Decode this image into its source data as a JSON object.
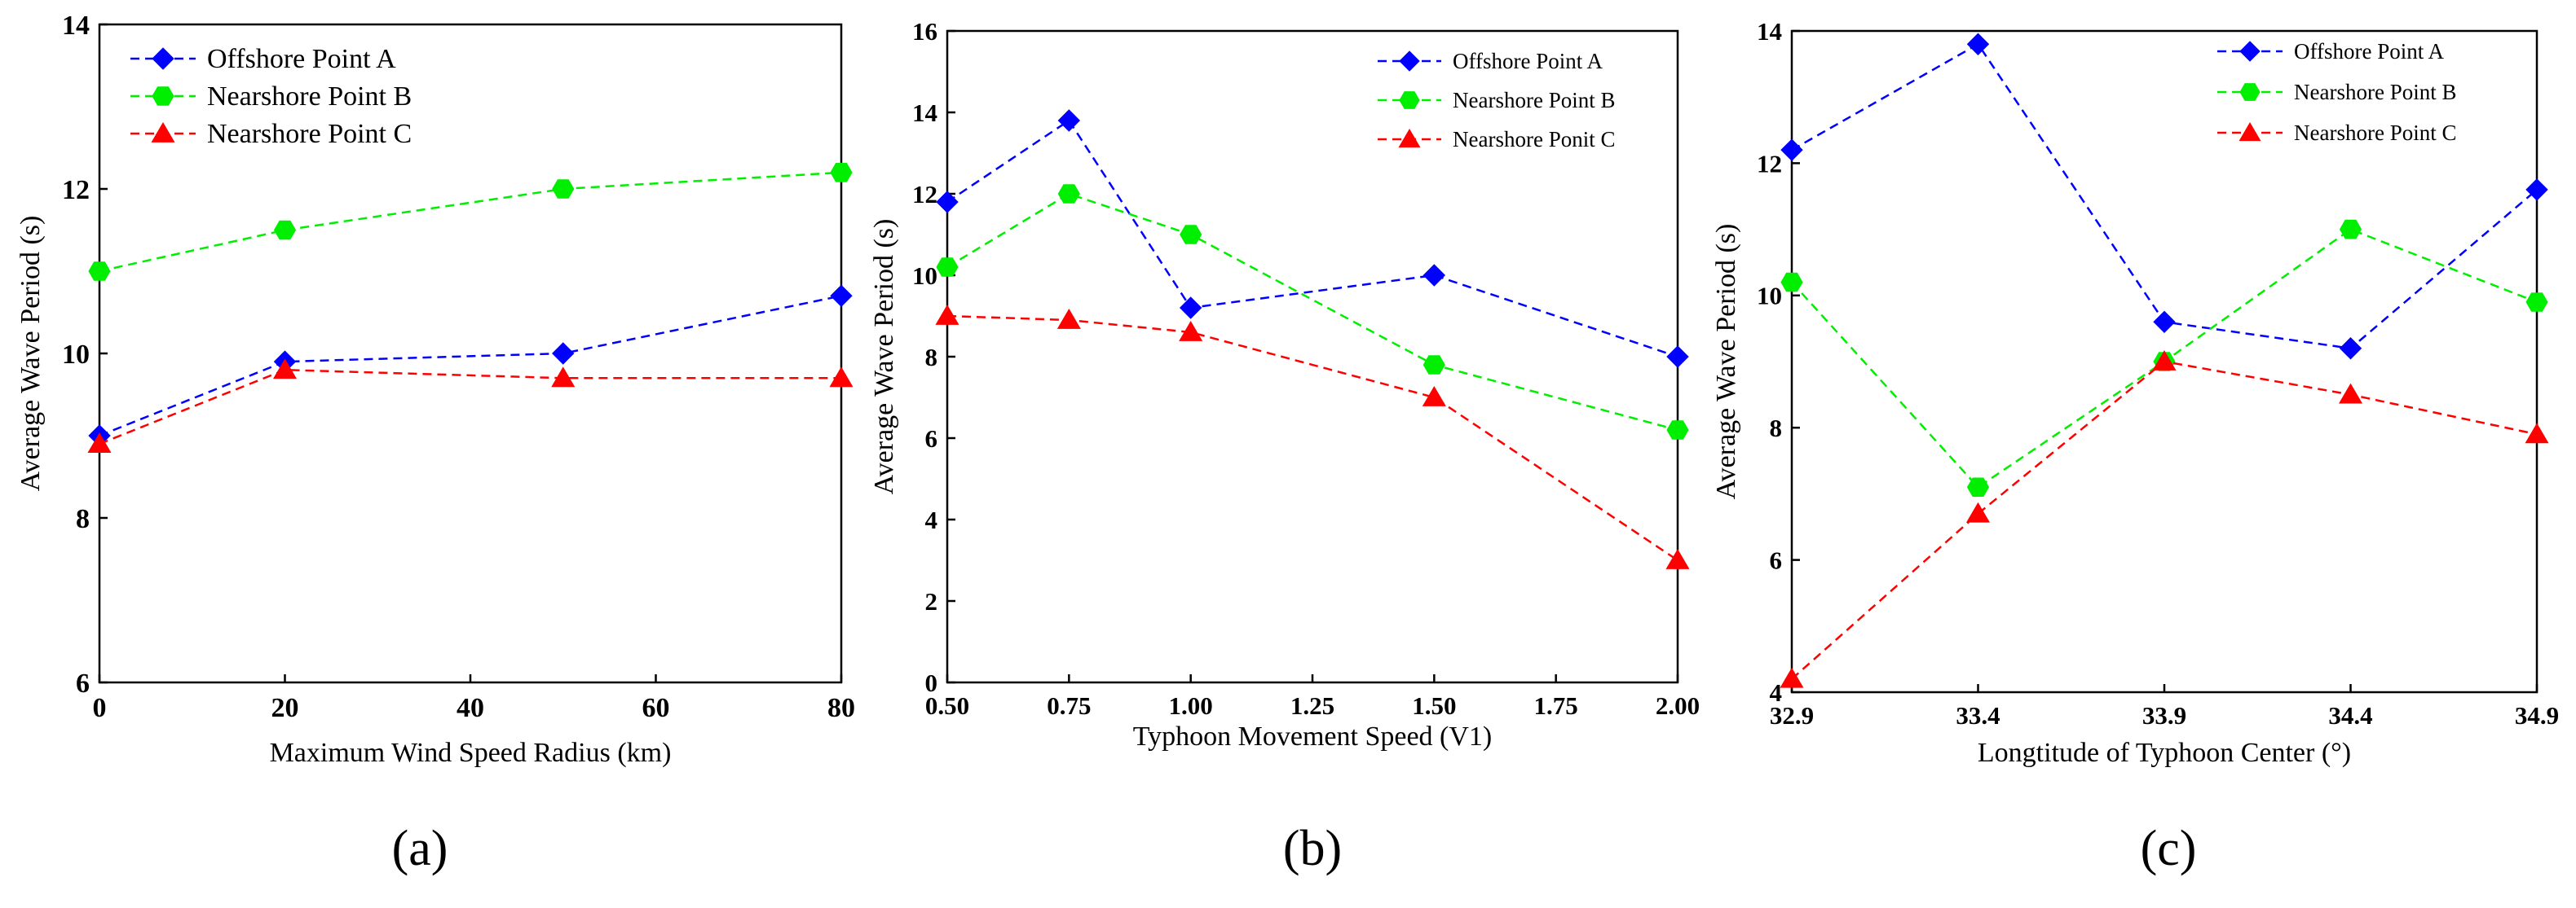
{
  "chart_data": [
    {
      "type": "line",
      "panel_label": "(a)",
      "xlabel": "Maximum Wind Speed Radius (km)",
      "ylabel": "Average Wave Period (s)",
      "xlim": [
        0,
        80
      ],
      "ylim": [
        6,
        14
      ],
      "x_ticks": [
        0,
        20,
        40,
        60,
        80
      ],
      "x_tick_labels": [
        "0",
        "20",
        "40",
        "60",
        "80"
      ],
      "y_ticks": [
        6,
        8,
        10,
        12,
        14
      ],
      "y_tick_labels": [
        "6",
        "8",
        "10",
        "12",
        "14"
      ],
      "x": [
        0,
        20,
        50,
        80
      ],
      "legend_position": "top-left",
      "grid": false,
      "series": [
        {
          "name": "Offshore Point A",
          "color": "#0000ff",
          "marker": "diamond",
          "values": [
            9.0,
            9.9,
            10.0,
            10.7
          ]
        },
        {
          "name": "Nearshore Point B",
          "color": "#00ee00",
          "marker": "hexagon",
          "values": [
            11.0,
            11.5,
            12.0,
            12.2
          ]
        },
        {
          "name": "Nearshore Point C",
          "color": "#ff0000",
          "marker": "triangle",
          "values": [
            8.9,
            9.8,
            9.7,
            9.7
          ]
        }
      ]
    },
    {
      "type": "line",
      "panel_label": "(b)",
      "xlabel": "Typhoon Movement Speed  (V1)",
      "ylabel": "Average Wave Period (s)",
      "xlim": [
        0.5,
        2.0
      ],
      "ylim": [
        0,
        16
      ],
      "x_ticks": [
        0.5,
        0.75,
        1.0,
        1.25,
        1.5,
        1.75,
        2.0
      ],
      "x_tick_labels": [
        "0.50",
        "0.75",
        "1.00",
        "1.25",
        "1.50",
        "1.75",
        "2.00"
      ],
      "y_ticks": [
        0,
        2,
        4,
        6,
        8,
        10,
        12,
        14,
        16
      ],
      "y_tick_labels": [
        "0",
        "2",
        "4",
        "6",
        "8",
        "10",
        "12",
        "14",
        "16"
      ],
      "x": [
        0.5,
        0.75,
        1.0,
        1.5,
        2.0
      ],
      "legend_position": "top-right",
      "grid": false,
      "series": [
        {
          "name": "Offshore Point A",
          "color": "#0000ff",
          "marker": "diamond",
          "values": [
            11.8,
            13.8,
            9.2,
            10.0,
            8.0
          ]
        },
        {
          "name": "Nearshore Point B",
          "color": "#00ee00",
          "marker": "hexagon",
          "values": [
            10.2,
            12.0,
            11.0,
            7.8,
            6.2
          ]
        },
        {
          "name": "Nearshore Ponit C",
          "color": "#ff0000",
          "marker": "triangle",
          "values": [
            9.0,
            8.9,
            8.6,
            7.0,
            3.0
          ]
        }
      ]
    },
    {
      "type": "line",
      "panel_label": "(c)",
      "xlabel": "Longtitude of Typhoon Center  (°)",
      "ylabel": "Average Wave Period (s)",
      "xlim": [
        32.9,
        34.9
      ],
      "ylim": [
        4,
        14
      ],
      "x_ticks": [
        32.9,
        33.4,
        33.9,
        34.4,
        34.9
      ],
      "x_tick_labels": [
        "32.9",
        "33.4",
        "33.9",
        "34.4",
        "34.9"
      ],
      "y_ticks": [
        4,
        6,
        8,
        10,
        12,
        14
      ],
      "y_tick_labels": [
        "4",
        "6",
        "8",
        "10",
        "12",
        "14"
      ],
      "x": [
        32.9,
        33.4,
        33.9,
        34.4,
        34.9
      ],
      "legend_position": "top-right",
      "grid": false,
      "series": [
        {
          "name": "Offshore Point A",
          "color": "#0000ff",
          "marker": "diamond",
          "values": [
            12.2,
            13.8,
            9.6,
            9.2,
            11.6
          ]
        },
        {
          "name": "Nearshore Point B",
          "color": "#00ee00",
          "marker": "hexagon",
          "values": [
            10.2,
            7.1,
            9.0,
            11.0,
            9.9
          ]
        },
        {
          "name": "Nearshore Point C",
          "color": "#ff0000",
          "marker": "triangle",
          "values": [
            4.2,
            6.7,
            9.0,
            8.5,
            7.9
          ]
        }
      ]
    }
  ]
}
